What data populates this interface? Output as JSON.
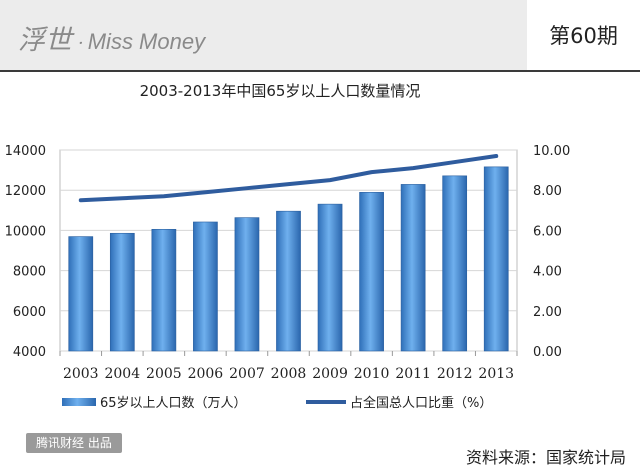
{
  "header": {
    "brand_main": "浮世",
    "brand_dot": "·",
    "brand_sub": "Miss Money",
    "issue": "第60期"
  },
  "footer": {
    "publisher": "腾讯财经 出品",
    "source": "资料来源：国家统计局"
  },
  "chart_data": {
    "type": "bar",
    "title": "2003-2013年中国65岁以上人口数量情况",
    "categories": [
      "2003",
      "2004",
      "2005",
      "2006",
      "2007",
      "2008",
      "2009",
      "2010",
      "2011",
      "2012",
      "2013"
    ],
    "series": [
      {
        "name": "65岁以上人口数（万人）",
        "type": "bar",
        "axis": "left",
        "values": [
          9692,
          9857,
          10055,
          10419,
          10636,
          10956,
          11307,
          11894,
          12288,
          12714,
          13161
        ]
      },
      {
        "name": "占全国总人口比重（%）",
        "type": "line",
        "axis": "right",
        "values": [
          7.5,
          7.6,
          7.7,
          7.9,
          8.1,
          8.3,
          8.5,
          8.9,
          9.1,
          9.4,
          9.7
        ]
      }
    ],
    "y_left": {
      "min": 4000,
      "max": 14000,
      "ticks": [
        "4000",
        "6000",
        "8000",
        "10000",
        "12000",
        "14000"
      ]
    },
    "y_right": {
      "min": 0,
      "max": 10,
      "ticks": [
        "0.00",
        "2.00",
        "4.00",
        "6.00",
        "8.00",
        "10.00"
      ]
    },
    "colors": {
      "bar": "#4a8fd4",
      "line": "#2f5c9e"
    },
    "grid": true,
    "legend": "bottom"
  }
}
